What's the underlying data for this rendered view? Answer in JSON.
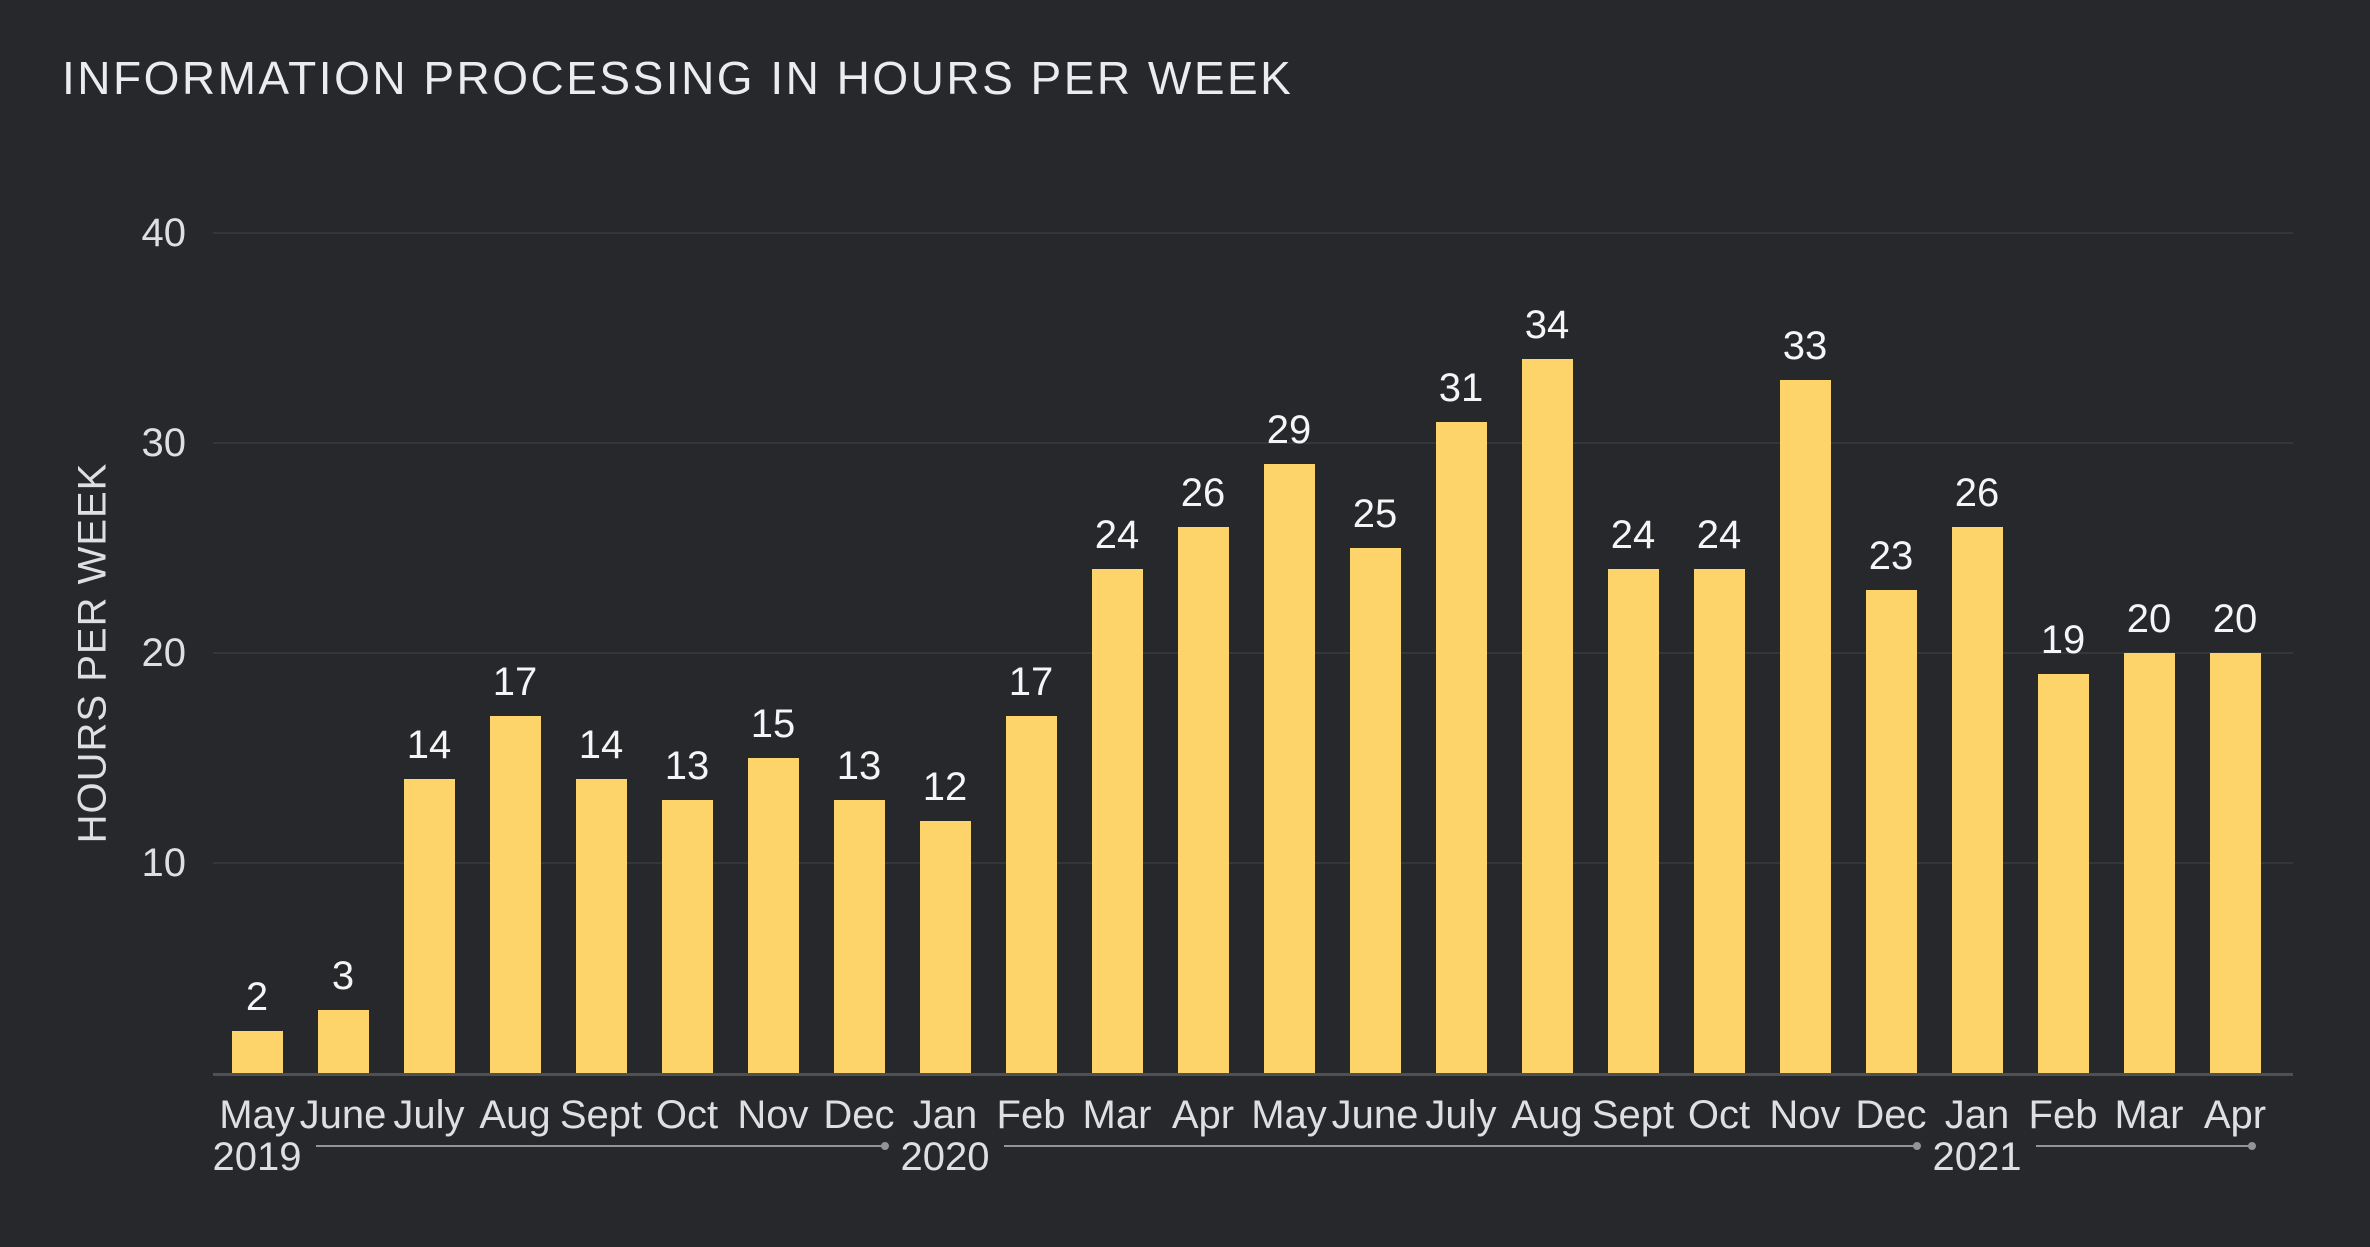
{
  "chart_data": {
    "type": "bar",
    "title": "INFORMATION PROCESSING IN HOURS PER WEEK",
    "xlabel": "",
    "ylabel": "HOURS PER WEEK",
    "categories": [
      "May",
      "June",
      "July",
      "Aug",
      "Sept",
      "Oct",
      "Nov",
      "Dec",
      "Jan",
      "Feb",
      "Mar",
      "Apr",
      "May",
      "June",
      "July",
      "Aug",
      "Sept",
      "Oct",
      "Nov",
      "Dec",
      "Jan",
      "Feb",
      "Mar",
      "Apr"
    ],
    "values": [
      2,
      3,
      14,
      17,
      14,
      13,
      15,
      13,
      12,
      17,
      24,
      26,
      29,
      25,
      31,
      34,
      24,
      24,
      33,
      23,
      26,
      19,
      20,
      20
    ],
    "year_groups": [
      {
        "label": "2019",
        "start_index": 0
      },
      {
        "label": "2020",
        "start_index": 8
      },
      {
        "label": "2021",
        "start_index": 20
      }
    ],
    "y_ticks": [
      10,
      20,
      30,
      40
    ],
    "ylim": [
      0,
      40
    ],
    "grid": true,
    "legend": "none",
    "bar_value_labels": true,
    "colors": {
      "background": "#26282C",
      "bar": "#FDD469",
      "title_text": "#EBECED",
      "value_text": "#F5F5F5",
      "axis_text": "#DEDFE1",
      "gridline": "#34363A",
      "baseline": "#4E5054",
      "year_line": "#939496",
      "year_line_dot": "#C9CACC"
    }
  }
}
